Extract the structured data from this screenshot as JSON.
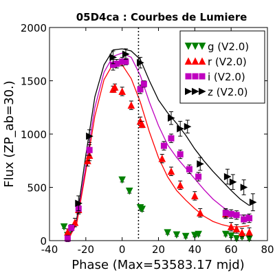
{
  "chart_data": {
    "type": "scatter",
    "title": "05D4ca : Courbes de Lumiere",
    "xlabel": "Phase (Max=53583.17 mjd)",
    "ylabel": "Flux (ZP_ab=30.)",
    "xlim": [
      -40,
      80
    ],
    "ylim": [
      0,
      2000
    ],
    "x_ticks": [
      -40,
      -20,
      0,
      20,
      40,
      60,
      80
    ],
    "y_ticks": [
      0,
      500,
      1000,
      1500,
      2000
    ],
    "x_tick_labels": [
      "-40",
      "-20",
      "0",
      "20",
      "40",
      "60",
      "80"
    ],
    "y_tick_labels": [
      "0",
      "500",
      "1000",
      "1500",
      "2000"
    ],
    "max_marker_x": 9,
    "grid": false,
    "legend_position": "top-right",
    "series": [
      {
        "name": "g (V2.0)",
        "color": "#008000",
        "marker": "triangle-down",
        "points": [
          {
            "x": -32,
            "y": 130,
            "err": 15
          },
          {
            "x": -30,
            "y": 50,
            "err": 15
          },
          {
            "x": 0,
            "y": 570,
            "err": 20
          },
          {
            "x": 4,
            "y": 465,
            "err": 20
          },
          {
            "x": 10,
            "y": 310,
            "err": 25
          },
          {
            "x": 11,
            "y": 295,
            "err": 20
          },
          {
            "x": 25,
            "y": 75,
            "err": 15
          },
          {
            "x": 30,
            "y": 55,
            "err": 15
          },
          {
            "x": 35,
            "y": 40,
            "err": 15
          },
          {
            "x": 40,
            "y": 50,
            "err": 15
          },
          {
            "x": 42,
            "y": 60,
            "err": 15
          },
          {
            "x": 57,
            "y": 60,
            "err": 15
          },
          {
            "x": 60,
            "y": 45,
            "err": 15
          },
          {
            "x": 63,
            "y": 20,
            "err": 15
          },
          {
            "x": 66,
            "y": 35,
            "err": 15
          },
          {
            "x": 70,
            "y": 20,
            "err": 15
          }
        ]
      },
      {
        "name": "r (V2.0)",
        "color": "#ff0000",
        "marker": "triangle-up",
        "points": [
          {
            "x": -30,
            "y": 80,
            "err": 30
          },
          {
            "x": -26,
            "y": 170,
            "err": 40
          },
          {
            "x": -24,
            "y": 290,
            "err": 40
          },
          {
            "x": -19,
            "y": 750,
            "err": 50
          },
          {
            "x": -18,
            "y": 800,
            "err": 50
          },
          {
            "x": -5,
            "y": 1420,
            "err": 30
          },
          {
            "x": -4,
            "y": 1440,
            "err": 30
          },
          {
            "x": 0,
            "y": 1400,
            "err": 40
          },
          {
            "x": 5,
            "y": 1270,
            "err": 40
          },
          {
            "x": 10,
            "y": 1120,
            "err": 40
          },
          {
            "x": 11,
            "y": 1090,
            "err": 30
          },
          {
            "x": 22,
            "y": 770,
            "err": 40
          },
          {
            "x": 27,
            "y": 650,
            "err": 40
          },
          {
            "x": 32,
            "y": 520,
            "err": 40
          },
          {
            "x": 40,
            "y": 420,
            "err": 40
          },
          {
            "x": 43,
            "y": 260,
            "err": 40
          },
          {
            "x": 57,
            "y": 250,
            "err": 40
          },
          {
            "x": 60,
            "y": 130,
            "err": 40
          },
          {
            "x": 63,
            "y": 110,
            "err": 40
          },
          {
            "x": 66,
            "y": 75,
            "err": 40
          },
          {
            "x": 70,
            "y": 80,
            "err": 40
          }
        ]
      },
      {
        "name": "i (V2.0)",
        "color": "#bf00bf",
        "marker": "square",
        "points": [
          {
            "x": -30,
            "y": 20,
            "err": 30
          },
          {
            "x": -28,
            "y": 120,
            "err": 30
          },
          {
            "x": -24,
            "y": 300,
            "err": 40
          },
          {
            "x": -18,
            "y": 850,
            "err": 50
          },
          {
            "x": -5,
            "y": 1650,
            "err": 50
          },
          {
            "x": -3,
            "y": 1660,
            "err": 40
          },
          {
            "x": 0,
            "y": 1680,
            "err": 40
          },
          {
            "x": 2,
            "y": 1680,
            "err": 30
          },
          {
            "x": 10,
            "y": 1420,
            "err": 40
          },
          {
            "x": 12,
            "y": 1470,
            "err": 30
          },
          {
            "x": 23,
            "y": 890,
            "err": 40
          },
          {
            "x": 27,
            "y": 960,
            "err": 40
          },
          {
            "x": 32,
            "y": 810,
            "err": 40
          },
          {
            "x": 37,
            "y": 670,
            "err": 40
          },
          {
            "x": 42,
            "y": 600,
            "err": 40
          },
          {
            "x": 57,
            "y": 260,
            "err": 40
          },
          {
            "x": 60,
            "y": 250,
            "err": 40
          },
          {
            "x": 63,
            "y": 240,
            "err": 40
          },
          {
            "x": 67,
            "y": 200,
            "err": 40
          },
          {
            "x": 70,
            "y": 210,
            "err": 40
          }
        ]
      },
      {
        "name": "z (V2.0)",
        "color": "#000000",
        "marker": "triangle-right",
        "points": [
          {
            "x": -24,
            "y": 350,
            "err": 70
          },
          {
            "x": -18,
            "y": 980,
            "err": 60
          },
          {
            "x": -5,
            "y": 1720,
            "err": 60
          },
          {
            "x": 2,
            "y": 1750,
            "err": 50
          },
          {
            "x": 10,
            "y": 1670,
            "err": 50
          },
          {
            "x": 27,
            "y": 1150,
            "err": 60
          },
          {
            "x": 32,
            "y": 1050,
            "err": 70
          },
          {
            "x": 36,
            "y": 1070,
            "err": 60
          },
          {
            "x": 43,
            "y": 720,
            "err": 60
          },
          {
            "x": 58,
            "y": 600,
            "err": 70
          },
          {
            "x": 61,
            "y": 550,
            "err": 70
          },
          {
            "x": 67,
            "y": 500,
            "err": 70
          },
          {
            "x": 72,
            "y": 360,
            "err": 80
          }
        ]
      }
    ],
    "fit_curves": [
      {
        "color": "#000000",
        "x": [
          -30,
          -25,
          -20,
          -15,
          -10,
          -5,
          0,
          5,
          10,
          15,
          20,
          25,
          30,
          35,
          40,
          45,
          50,
          55,
          60,
          65,
          70
        ],
        "y": [
          0,
          200,
          800,
          1350,
          1650,
          1790,
          1800,
          1780,
          1700,
          1500,
          1320,
          1200,
          1100,
          990,
          860,
          750,
          650,
          560,
          470,
          390,
          330
        ]
      },
      {
        "color": "#bf00bf",
        "x": [
          -30,
          -25,
          -20,
          -15,
          -10,
          -5,
          0,
          5,
          10,
          15,
          20,
          25,
          30,
          35,
          40,
          45,
          50,
          55,
          60,
          65,
          70
        ],
        "y": [
          0,
          170,
          700,
          1250,
          1580,
          1730,
          1760,
          1720,
          1550,
          1300,
          1080,
          900,
          780,
          680,
          580,
          480,
          390,
          320,
          260,
          240,
          240
        ]
      },
      {
        "color": "#ff0000",
        "x": [
          -30,
          -25,
          -20,
          -15,
          -10,
          -5,
          0,
          5,
          10,
          15,
          20,
          25,
          30,
          35,
          40,
          45,
          50,
          55,
          60,
          65,
          70
        ],
        "y": [
          0,
          160,
          650,
          1170,
          1510,
          1660,
          1650,
          1520,
          1300,
          1020,
          780,
          600,
          470,
          380,
          300,
          230,
          180,
          150,
          130,
          130,
          140
        ]
      }
    ]
  }
}
